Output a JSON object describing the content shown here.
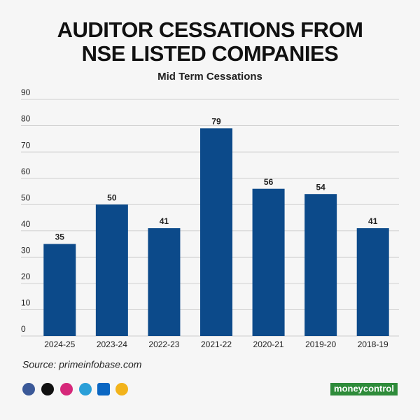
{
  "chart_data": {
    "type": "bar",
    "title": "AUDITOR CESSATIONS FROM NSE LISTED COMPANIES",
    "subtitle": "Mid Term Cessations",
    "categories": [
      "2024-25",
      "2023-24",
      "2022-23",
      "2021-22",
      "2020-21",
      "2019-20",
      "2018-19"
    ],
    "values": [
      35,
      50,
      41,
      79,
      56,
      54,
      41
    ],
    "color": "#0c4a8a",
    "ylim": [
      0,
      90
    ],
    "yticks": [
      0,
      10,
      20,
      30,
      40,
      50,
      60,
      70,
      80,
      90
    ],
    "grid": true,
    "source": "Source: primeinfobase.com",
    "brand": "moneycontrol"
  }
}
